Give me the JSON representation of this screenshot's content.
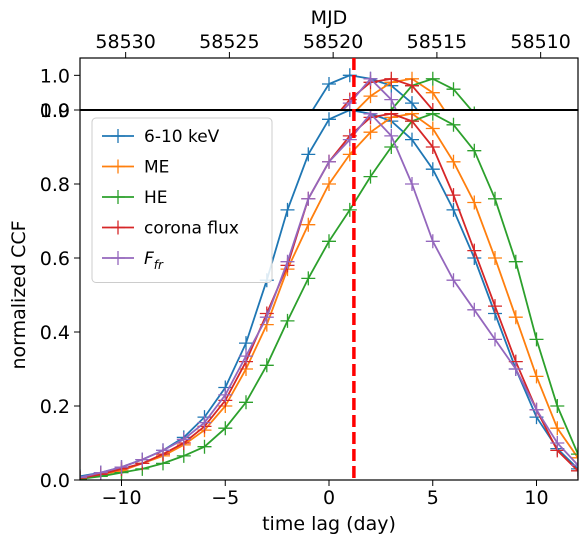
{
  "chart_data": {
    "type": "line",
    "xlabel": "time lag (day)",
    "ylabel": "normalized CCF",
    "top_axis_label": "MJD",
    "xlim": [
      -12,
      12
    ],
    "ylim": [
      0,
      1.0
    ],
    "inset_ylim": [
      0.9,
      1.05
    ],
    "xticks": [
      -10,
      -5,
      0,
      5,
      10
    ],
    "xtick_labels": [
      "−10",
      "−5",
      "0",
      "5",
      "10"
    ],
    "yticks": [
      0.0,
      0.2,
      0.4,
      0.6,
      0.8,
      1.0
    ],
    "ytick_labels": [
      "0.0",
      "0.2",
      "0.4",
      "0.6",
      "0.8",
      "1.0"
    ],
    "inset_yticks": [
      0.9,
      1.0
    ],
    "inset_ytick_labels": [
      "0.9",
      "1.0"
    ],
    "top_ticks": [
      {
        "lag": -9.8,
        "label": "58530"
      },
      {
        "lag": -4.8,
        "label": "58525"
      },
      {
        "lag": 0.2,
        "label": "58520"
      },
      {
        "lag": 5.2,
        "label": "58515"
      },
      {
        "lag": 10.2,
        "label": "58510"
      }
    ],
    "vertical_line": {
      "x": 1.2,
      "color": "#ff0000",
      "style": "dashed"
    },
    "grid": false,
    "legend_placement": "upper-left",
    "x": [
      -12,
      -11,
      -10,
      -9,
      -8,
      -7,
      -6,
      -5,
      -4,
      -3,
      -2,
      -1,
      0,
      1,
      2,
      3,
      4,
      5,
      6,
      7,
      8,
      9,
      10,
      11,
      12
    ],
    "series": [
      {
        "name": "6-10 keV",
        "color": "#1f77b4",
        "values": [
          0.01,
          0.02,
          0.035,
          0.055,
          0.08,
          0.115,
          0.17,
          0.25,
          0.37,
          0.54,
          0.73,
          0.88,
          0.975,
          1.0,
          0.99,
          0.97,
          0.92,
          0.84,
          0.73,
          0.6,
          0.45,
          0.3,
          0.17,
          0.085,
          0.03
        ]
      },
      {
        "name": "ME",
        "color": "#ff7f0e",
        "values": [
          0.005,
          0.015,
          0.025,
          0.045,
          0.065,
          0.095,
          0.135,
          0.2,
          0.3,
          0.42,
          0.57,
          0.69,
          0.8,
          0.88,
          0.94,
          0.98,
          0.99,
          0.95,
          0.86,
          0.75,
          0.6,
          0.44,
          0.28,
          0.14,
          0.06
        ]
      },
      {
        "name": "HE",
        "color": "#2ca02c",
        "values": [
          0.003,
          0.01,
          0.02,
          0.03,
          0.045,
          0.065,
          0.09,
          0.14,
          0.21,
          0.31,
          0.43,
          0.545,
          0.645,
          0.73,
          0.82,
          0.9,
          0.97,
          0.99,
          0.96,
          0.89,
          0.76,
          0.59,
          0.38,
          0.2,
          0.07
        ]
      },
      {
        "name": "corona flux",
        "color": "#d62728",
        "values": [
          0.005,
          0.015,
          0.03,
          0.045,
          0.07,
          0.1,
          0.145,
          0.215,
          0.32,
          0.45,
          0.58,
          0.76,
          0.86,
          0.93,
          0.98,
          0.99,
          0.97,
          0.9,
          0.77,
          0.62,
          0.47,
          0.32,
          0.19,
          0.08,
          0.025
        ]
      },
      {
        "name": "F_fr",
        "color": "#9467bd",
        "values": [
          0.007,
          0.02,
          0.035,
          0.055,
          0.08,
          0.11,
          0.155,
          0.23,
          0.335,
          0.44,
          0.59,
          0.76,
          0.86,
          0.92,
          0.99,
          0.93,
          0.8,
          0.645,
          0.54,
          0.46,
          0.38,
          0.3,
          0.19,
          0.1,
          0.04
        ]
      }
    ]
  }
}
